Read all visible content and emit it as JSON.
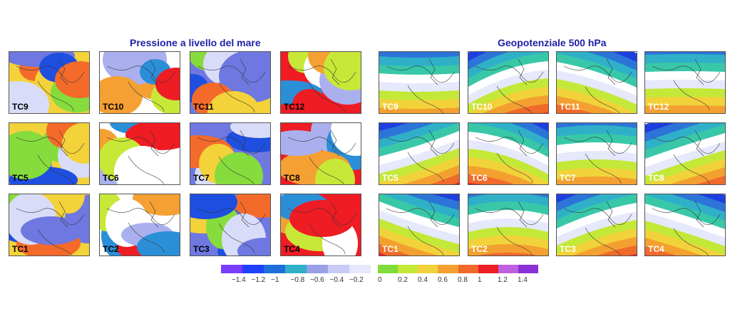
{
  "titles": {
    "left": "Pressione a livello del mare",
    "right": "Geopotenziale 500 hPa"
  },
  "panels_left": [
    [
      "TC9",
      "TC10",
      "TC11",
      "TC12"
    ],
    [
      "TC5",
      "TC6",
      "TC7",
      "TC8"
    ],
    [
      "TC1",
      "TC2",
      "TC3",
      "TC4"
    ]
  ],
  "panels_right": [
    [
      "TC9",
      "TC10",
      "TC11",
      "TC12"
    ],
    [
      "TC5",
      "TC6",
      "TC7",
      "TC8"
    ],
    [
      "TC1",
      "TC2",
      "TC3",
      "TC4"
    ]
  ],
  "colorbar": {
    "negative_ticks": [
      "−1.4",
      "−1.2",
      "−1",
      "−0.8",
      "−0.6",
      "−0.4",
      "−0.2"
    ],
    "positive_ticks": [
      "0",
      "0.2",
      "0.4",
      "0.6",
      "0.8",
      "1",
      "1.2",
      "1.4"
    ],
    "negative_colors": [
      "#7a3cff",
      "#2040ff",
      "#1e6fd9",
      "#2fb0c8",
      "#9aa0e8",
      "#c8cbf5",
      "#e6e8fb"
    ],
    "positive_colors": [
      "#7fdc3a",
      "#c4e838",
      "#f2d23a",
      "#f3a030",
      "#f06a2a",
      "#ee1c24",
      "#c060e0",
      "#8a30d8"
    ]
  }
}
